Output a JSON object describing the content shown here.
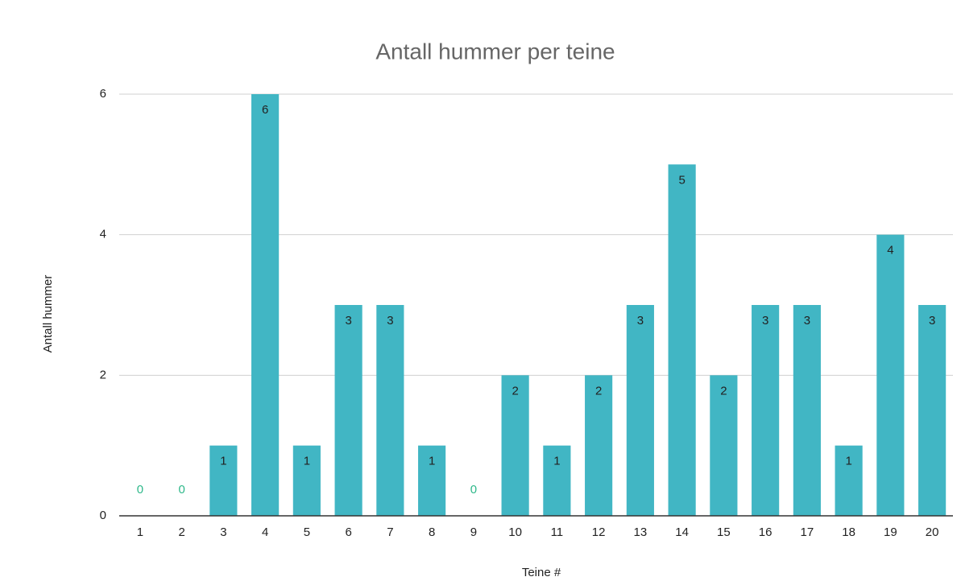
{
  "chart_data": {
    "type": "bar",
    "title": "Antall hummer per teine",
    "x_label": "Teine #",
    "y_label": "Antall hummer",
    "categories": [
      "1",
      "2",
      "3",
      "4",
      "5",
      "6",
      "7",
      "8",
      "9",
      "10",
      "11",
      "12",
      "13",
      "14",
      "15",
      "16",
      "17",
      "18",
      "19",
      "20"
    ],
    "values": [
      0,
      0,
      1,
      6,
      1,
      3,
      3,
      1,
      0,
      2,
      1,
      2,
      3,
      5,
      2,
      3,
      3,
      1,
      4,
      3
    ],
    "color": "#41b6c4",
    "ylim": [
      0,
      6
    ],
    "yticks": [
      0,
      2,
      4,
      6
    ],
    "grid": true
  }
}
